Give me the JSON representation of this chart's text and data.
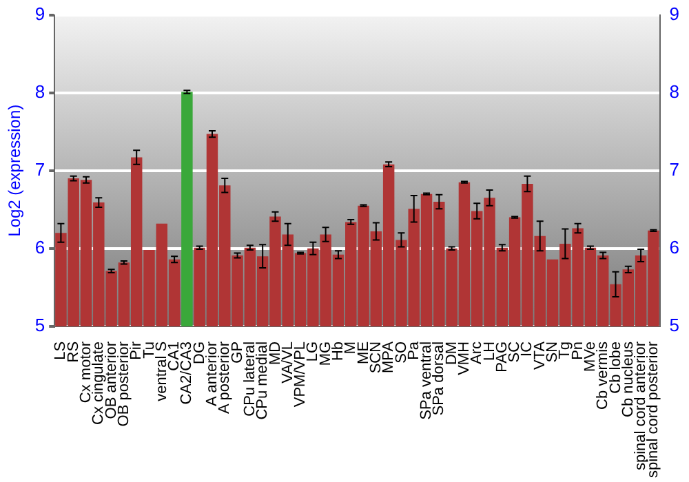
{
  "chart_data": {
    "type": "bar",
    "ylabel": "Log2 (expression)",
    "categories": [
      "LS",
      "RS",
      "Cx motor",
      "Cx cingulate",
      "OB anterior",
      "OB posterior",
      "Pir",
      "Tu",
      "ventral S",
      "CA1",
      "CA2/CA3",
      "DG",
      "A anterior",
      "A posterior",
      "GP",
      "CPu lateral",
      "CPu medial",
      "MD",
      "VA/VL",
      "VPM/VPL",
      "LG",
      "MG",
      "Hb",
      "M",
      "ME",
      "SCN",
      "MPA",
      "SO",
      "Pa",
      "SPa ventral",
      "SPa dorsal",
      "DM",
      "VMH",
      "Arc",
      "LH",
      "PAG",
      "SC",
      "IC",
      "VTA",
      "SN",
      "Tg",
      "Pn",
      "MVe",
      "Cb vermis",
      "Cb lobe",
      "Cb nucleus",
      "spinal cord anterior",
      "spinal cord posterior"
    ],
    "values": [
      6.2,
      6.9,
      6.88,
      6.59,
      5.71,
      5.82,
      7.17,
      5.98,
      6.32,
      5.86,
      8.01,
      6.01,
      7.47,
      6.81,
      5.91,
      6.01,
      5.9,
      6.41,
      6.18,
      5.94,
      6.0,
      6.18,
      5.92,
      6.34,
      6.55,
      6.22,
      7.08,
      6.11,
      6.51,
      6.7,
      6.6,
      6.0,
      6.85,
      6.48,
      6.65,
      6.01,
      6.4,
      6.83,
      6.16,
      5.86,
      6.06,
      6.26,
      6.01,
      5.91,
      5.54,
      5.73,
      5.91,
      6.23
    ],
    "errors": [
      0.12,
      0.03,
      0.04,
      0.06,
      0.02,
      0.02,
      0.09,
      null,
      null,
      0.04,
      0.02,
      0.02,
      0.04,
      0.09,
      0.03,
      0.03,
      0.15,
      0.06,
      0.14,
      0.01,
      0.08,
      0.09,
      0.05,
      0.03,
      0.01,
      0.11,
      0.03,
      0.09,
      0.17,
      0.01,
      0.09,
      0.02,
      0.01,
      0.1,
      0.1,
      0.04,
      0.01,
      0.1,
      0.19,
      null,
      0.19,
      0.06,
      0.02,
      0.04,
      0.16,
      0.04,
      0.08,
      0.01
    ],
    "colors": [
      "#b03535",
      "#b03535",
      "#b03535",
      "#b03535",
      "#b03535",
      "#b03535",
      "#b03535",
      "#b03535",
      "#b03535",
      "#b03535",
      "#3aa83a",
      "#b03535",
      "#b03535",
      "#b03535",
      "#b03535",
      "#b03535",
      "#b03535",
      "#b03535",
      "#b03535",
      "#b03535",
      "#b03535",
      "#b03535",
      "#b03535",
      "#b03535",
      "#b03535",
      "#b03535",
      "#b03535",
      "#b03535",
      "#b03535",
      "#b03535",
      "#b03535",
      "#b03535",
      "#b03535",
      "#b03535",
      "#b03535",
      "#b03535",
      "#b03535",
      "#b03535",
      "#b03535",
      "#b03535",
      "#b03535",
      "#b03535",
      "#b03535",
      "#b03535",
      "#b03535",
      "#b03535",
      "#b03535",
      "#b03535"
    ],
    "ylim": [
      5,
      9
    ],
    "yticks": [
      5,
      6,
      7,
      8,
      9
    ],
    "y2lim": [
      5,
      9
    ],
    "y2ticks": [
      5,
      6,
      7,
      8,
      9
    ],
    "grid": "y"
  }
}
